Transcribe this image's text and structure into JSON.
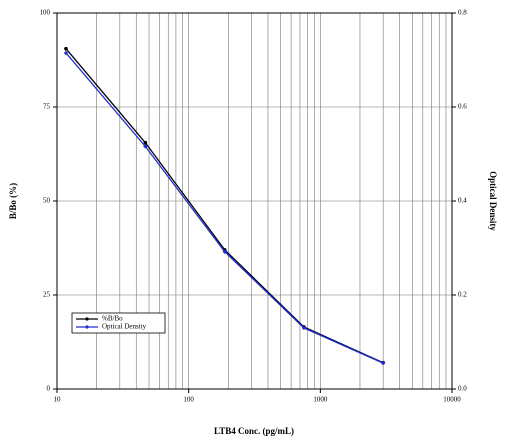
{
  "chart_data": {
    "type": "line",
    "x_label": "LTB4 Conc. (pg/mL)",
    "y_label": "B/Bo (%)",
    "y2_label": "Optical Density",
    "x": [
      11.7,
      46.9,
      188,
      750,
      3000
    ],
    "xscale": "log",
    "xlim": [
      10,
      10000
    ],
    "xticks": [
      10,
      100,
      1000,
      10000
    ],
    "ylim": [
      0,
      100
    ],
    "yticks": [
      0,
      25,
      50,
      75,
      100
    ],
    "y2lim": [
      0,
      0.8
    ],
    "y2ticks": [
      {
        "value": 0,
        "label": "0.0"
      },
      0.2,
      0.4,
      0.6,
      0.8
    ],
    "grid": true,
    "legend": "lower left",
    "series": [
      {
        "name": "%B/Bo",
        "color": "#000000",
        "values": [
          90.5,
          65.5,
          37,
          16.5,
          7
        ]
      },
      {
        "name": "Optical Density",
        "color": "#1f2fd0",
        "axis": "y2",
        "values": [
          0.715,
          0.516,
          0.292,
          0.13,
          0.055
        ]
      }
    ]
  }
}
